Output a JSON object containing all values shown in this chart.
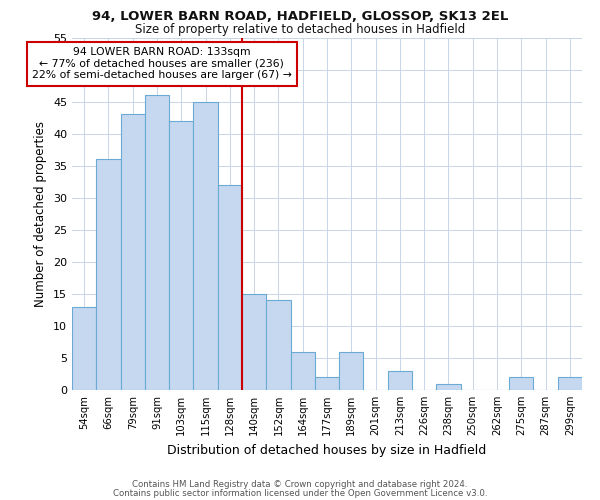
{
  "title1": "94, LOWER BARN ROAD, HADFIELD, GLOSSOP, SK13 2EL",
  "title2": "Size of property relative to detached houses in Hadfield",
  "xlabel": "Distribution of detached houses by size in Hadfield",
  "ylabel": "Number of detached properties",
  "bin_labels": [
    "54sqm",
    "66sqm",
    "79sqm",
    "91sqm",
    "103sqm",
    "115sqm",
    "128sqm",
    "140sqm",
    "152sqm",
    "164sqm",
    "177sqm",
    "189sqm",
    "201sqm",
    "213sqm",
    "226sqm",
    "238sqm",
    "250sqm",
    "262sqm",
    "275sqm",
    "287sqm",
    "299sqm"
  ],
  "bar_values": [
    13,
    36,
    43,
    46,
    42,
    45,
    32,
    15,
    14,
    6,
    2,
    6,
    0,
    3,
    0,
    1,
    0,
    0,
    2,
    0,
    2
  ],
  "bar_color": "#c5d8f0",
  "bar_edge_color": "#6aaad4",
  "vline_x": 6.5,
  "vline_color": "#cc0000",
  "annotation_text": "94 LOWER BARN ROAD: 133sqm\n← 77% of detached houses are smaller (236)\n22% of semi-detached houses are larger (67) →",
  "annotation_box_color": "white",
  "annotation_box_edge": "#cc0000",
  "ylim": [
    0,
    55
  ],
  "yticks": [
    0,
    5,
    10,
    15,
    20,
    25,
    30,
    35,
    40,
    45,
    50,
    55
  ],
  "footer1": "Contains HM Land Registry data © Crown copyright and database right 2024.",
  "footer2": "Contains public sector information licensed under the Open Government Licence v3.0.",
  "bg_color": "#ffffff",
  "plot_bg_color": "#ffffff",
  "grid_color": "#c8d4e8"
}
